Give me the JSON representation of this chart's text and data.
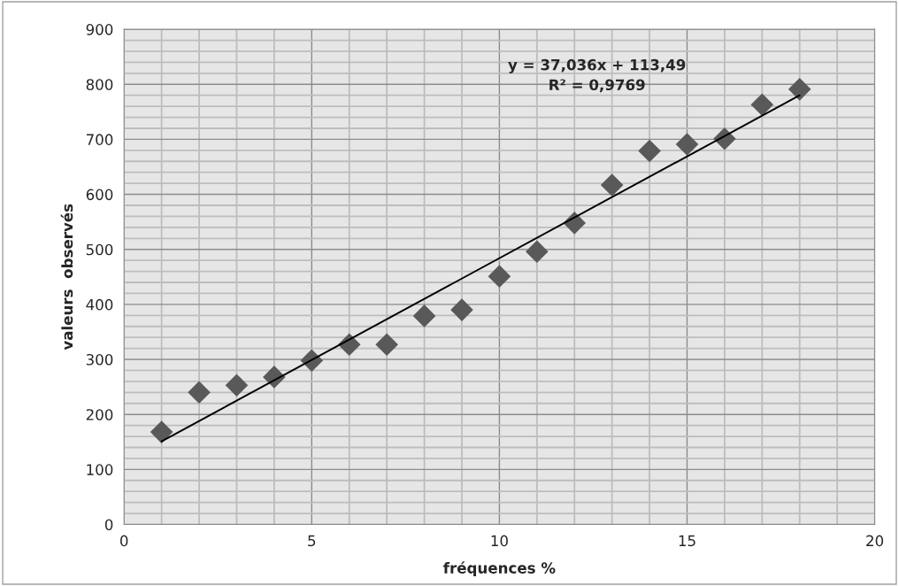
{
  "chart_data": {
    "type": "scatter",
    "xlabel": "fréquences %",
    "ylabel": "valeurs  observés",
    "xlim": [
      0,
      20
    ],
    "xticks": [
      0,
      5,
      10,
      15,
      20
    ],
    "ylim": [
      0,
      900
    ],
    "yticks": [
      0,
      100,
      200,
      300,
      400,
      500,
      600,
      700,
      800,
      900
    ],
    "grid": true,
    "marker": "diamond",
    "series": [
      {
        "color": "#595959",
        "x": [
          1,
          2,
          3,
          4,
          5,
          6,
          7,
          8,
          9,
          10,
          11,
          12,
          13,
          14,
          15,
          16,
          17,
          18
        ],
        "values": [
          168,
          240,
          253,
          268,
          298,
          327,
          327,
          379,
          390,
          451,
          496,
          548,
          617,
          679,
          691,
          701,
          763,
          791
        ]
      },
      {
        "type": "line",
        "color": "#000000",
        "marker": "none",
        "x": [
          1,
          18
        ],
        "values": [
          151,
          780
        ]
      }
    ],
    "annotations": [
      "y = 37,036x + 113,49\nR² = 0,9769"
    ]
  }
}
